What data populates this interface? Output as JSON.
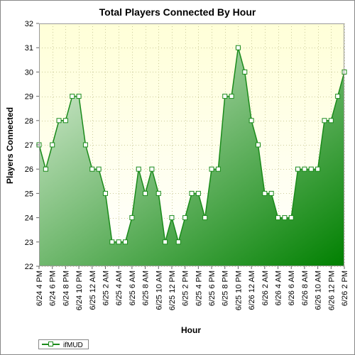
{
  "chart_data": {
    "type": "area",
    "title": "Total Players Connected By Hour",
    "xlabel": "Hour",
    "ylabel": "Players Connected",
    "ylim": [
      22,
      32
    ],
    "yticks": [
      22,
      23,
      24,
      25,
      26,
      27,
      28,
      29,
      30,
      31,
      32
    ],
    "grid": true,
    "legend_position": "bottom-left",
    "tick_labels": [
      "6/24 4 PM",
      "6/24 6 PM",
      "6/24 8 PM",
      "6/24 10 PM",
      "6/25 12 AM",
      "6/25 2 AM",
      "6/25 4 AM",
      "6/25 6 AM",
      "6/25 8 AM",
      "6/25 10 AM",
      "6/25 12 PM",
      "6/25 2 PM",
      "6/25 4 PM",
      "6/25 6 PM",
      "6/25 8 PM",
      "6/25 10 PM",
      "6/26 12 AM",
      "6/26 2 AM",
      "6/26 4 AM",
      "6/26 6 AM",
      "6/26 8 AM",
      "6/26 10 AM",
      "6/26 12 PM",
      "6/26 2 PM"
    ],
    "series": [
      {
        "name": "ifMUD",
        "values": [
          27,
          26,
          27,
          28,
          28,
          29,
          29,
          27,
          26,
          26,
          25,
          23,
          23,
          23,
          24,
          26,
          25,
          26,
          25,
          23,
          24,
          23,
          24,
          25,
          25,
          24,
          26,
          26,
          29,
          29,
          31,
          30,
          28,
          27,
          25,
          25,
          24,
          24,
          24,
          26,
          26,
          26,
          26,
          28,
          28,
          29,
          30
        ]
      }
    ]
  },
  "colors": {
    "plot_bg_top": "#ffffd8",
    "plot_bg_bottom": "#ffffff",
    "line": "#1a8a1a",
    "fill_light": "#e0f0dc",
    "fill_dark": "#008000",
    "grid": "#cccc99"
  }
}
